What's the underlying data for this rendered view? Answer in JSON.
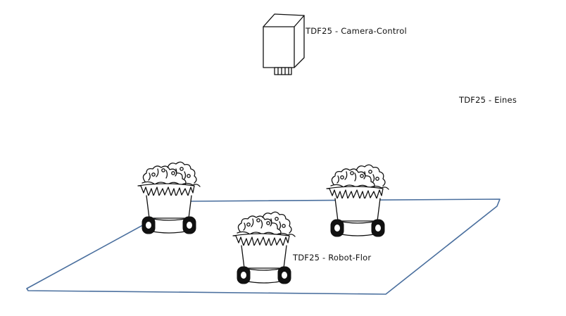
{
  "labels": {
    "camera": "TDF25 - Camera-Control",
    "eines": "TDF25 - Eines",
    "robot": "TDF25 - Robot-Flor"
  },
  "colors": {
    "floor_outline": "#4a6f9e",
    "ink": "#111111",
    "background": "#ffffff"
  },
  "icons": {
    "camera": "camera-box-icon",
    "robot": "flower-pot-robot-icon"
  }
}
